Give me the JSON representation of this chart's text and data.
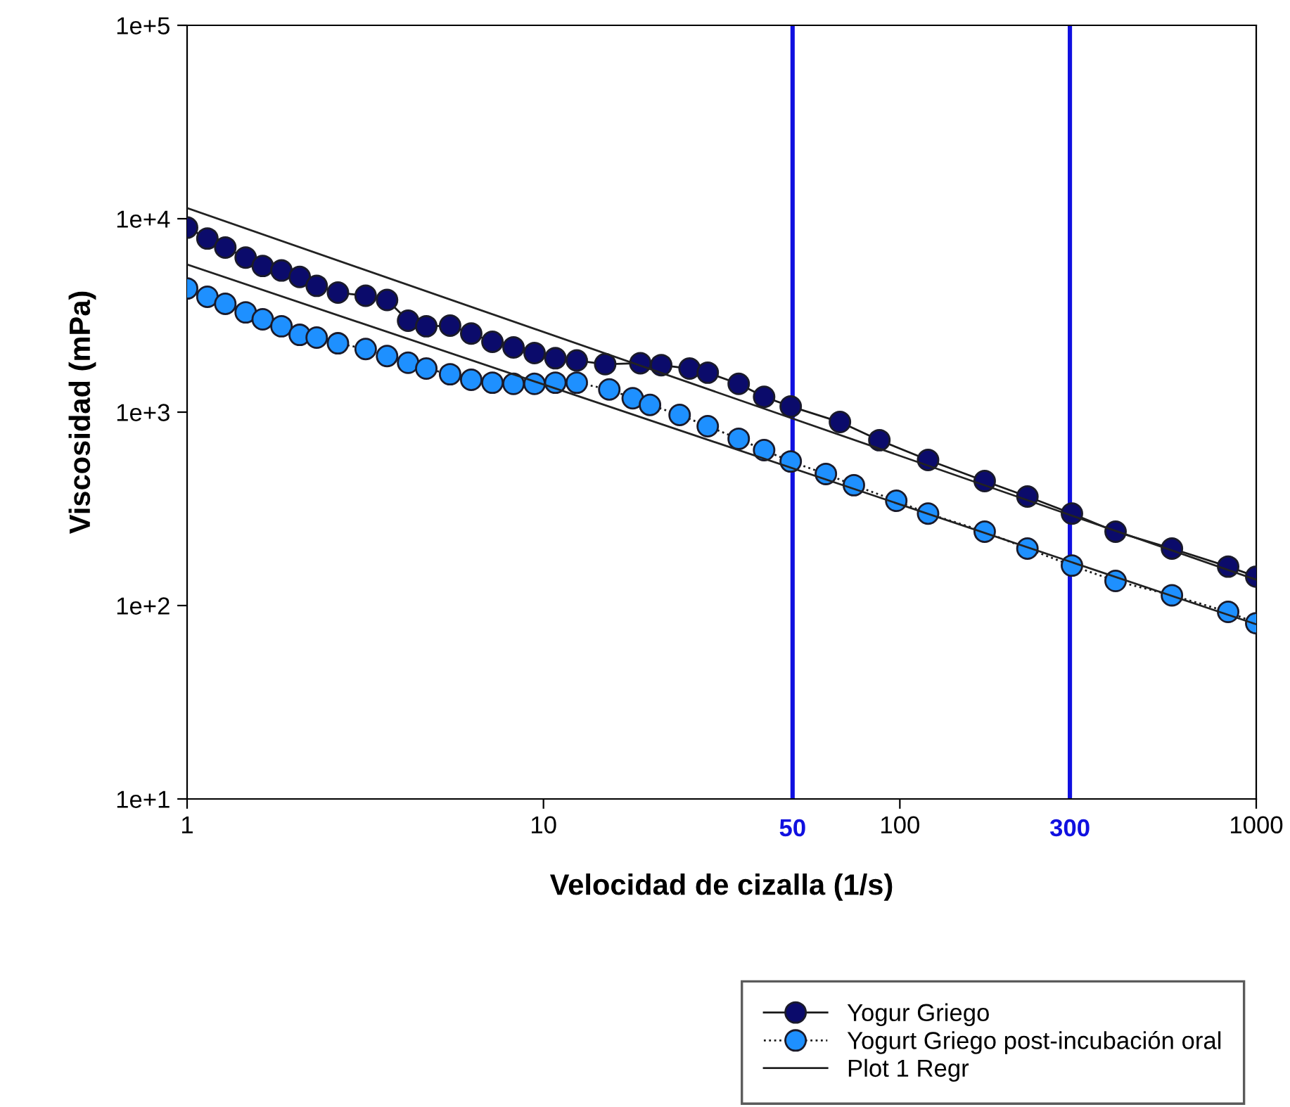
{
  "chart_data": {
    "type": "line",
    "xlabel": "Velocidad de cizalla (1/s)",
    "ylabel": "Viscosidad (mPa)",
    "log": "xy",
    "xlim": [
      1,
      1000
    ],
    "xticks": [
      1,
      10,
      100,
      1000
    ],
    "ylim": [
      10,
      100000
    ],
    "yticks": [
      {
        "value": 10,
        "label": "1e+1"
      },
      {
        "value": 100,
        "label": "1e+2"
      },
      {
        "value": 1000,
        "label": "1e+3"
      },
      {
        "value": 10000,
        "label": "1e+4"
      },
      {
        "value": 100000,
        "label": "1e+5"
      }
    ],
    "grid": false,
    "legend": "bottom right",
    "ref_lines": [
      {
        "axis": "x",
        "value": 50,
        "label": "50",
        "color": "#1010e0"
      },
      {
        "axis": "x",
        "value": 300,
        "label": "300",
        "color": "#1010e0"
      }
    ],
    "series": [
      {
        "name": "Yogur Griego",
        "color": "#0b0b6b",
        "marker": "circle",
        "line_style": "solid",
        "x": [
          1,
          1.14,
          1.28,
          1.46,
          1.63,
          1.84,
          2.07,
          2.31,
          2.65,
          3.17,
          3.64,
          4.17,
          4.69,
          5.47,
          6.27,
          7.19,
          8.24,
          9.44,
          10.8,
          12.4,
          14.9,
          18.7,
          21.4,
          25.7,
          28.9,
          35.3,
          41.6,
          49.4,
          67.9,
          87.6,
          120,
          173,
          228,
          304,
          403,
          580,
          834,
          1000
        ],
        "values": [
          9000,
          7900,
          7100,
          6300,
          5700,
          5400,
          5000,
          4500,
          4150,
          4000,
          3800,
          2970,
          2780,
          2800,
          2550,
          2310,
          2160,
          2020,
          1900,
          1850,
          1770,
          1790,
          1750,
          1680,
          1600,
          1400,
          1200,
          1070,
          889,
          716,
          566,
          440,
          366,
          299,
          241,
          197,
          159,
          141
        ]
      },
      {
        "name": "Yogurt Griego post-incubación oral",
        "color": "#1e90ff",
        "marker": "circle",
        "line_style": "dotted",
        "x": [
          1,
          1.14,
          1.28,
          1.46,
          1.63,
          1.84,
          2.07,
          2.31,
          2.65,
          3.17,
          3.64,
          4.17,
          4.69,
          5.47,
          6.27,
          7.19,
          8.24,
          9.44,
          10.8,
          12.4,
          15.3,
          17.8,
          19.9,
          24.1,
          28.9,
          35.3,
          41.6,
          49.4,
          62.0,
          74.3,
          97.7,
          120,
          173,
          228,
          304,
          403,
          580,
          834,
          1000
        ],
        "values": [
          4360,
          3950,
          3630,
          3280,
          3020,
          2780,
          2510,
          2430,
          2270,
          2120,
          1950,
          1800,
          1680,
          1570,
          1470,
          1420,
          1400,
          1400,
          1420,
          1420,
          1310,
          1180,
          1090,
          967,
          846,
          728,
          636,
          556,
          479,
          419,
          348,
          299,
          241,
          197,
          161,
          134,
          113,
          92.7,
          81
        ]
      },
      {
        "name": "Plot 1 Regr",
        "color": "#222222",
        "marker": "none",
        "line_style": "solid",
        "x": [
          1,
          1000
        ],
        "values": [
          11350,
          136
        ]
      },
      {
        "color": "#222222",
        "marker": "none",
        "line_style": "solid",
        "x": [
          1,
          1000
        ],
        "values": [
          5800,
          80
        ]
      }
    ]
  }
}
